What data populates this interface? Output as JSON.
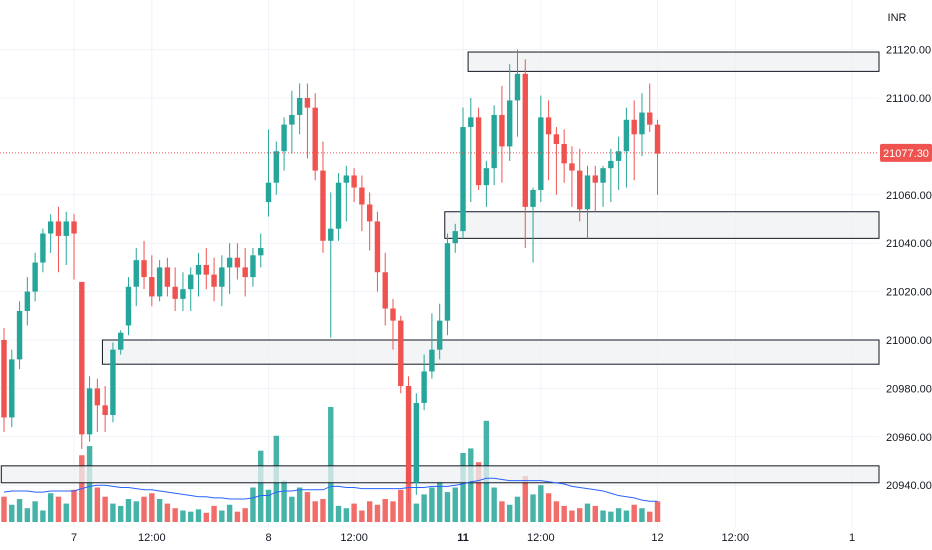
{
  "chart_data": {
    "type": "candlestick",
    "currency": "INR",
    "ylim": [
      20925,
      21130
    ],
    "y_ticks": [
      21120,
      21100,
      21060,
      21040,
      21020,
      21000,
      20980,
      20960,
      20940
    ],
    "y_tick_labels": [
      "21120.00",
      "21100.00",
      "21060.00",
      "21040.00",
      "21020.00",
      "21000.00",
      "20980.00",
      "20960.00",
      "20940.00"
    ],
    "last_price": 21077.3,
    "last_price_label": "21077.30",
    "x_ticks": [
      {
        "bar": 9,
        "label": "7",
        "bold": false
      },
      {
        "bar": 19,
        "label": "12:00",
        "bold": false
      },
      {
        "bar": 34,
        "label": "8",
        "bold": false
      },
      {
        "bar": 45,
        "label": "12:00",
        "bold": false
      },
      {
        "bar": 59,
        "label": "11",
        "bold": true
      },
      {
        "bar": 69,
        "label": "12:00",
        "bold": false
      },
      {
        "bar": 84,
        "label": "12",
        "bold": false
      },
      {
        "bar": 94,
        "label": "12:00",
        "bold": false
      },
      {
        "bar": 109,
        "label": "1",
        "bold": false
      }
    ],
    "ohlc": [
      [
        21000,
        21005,
        20962,
        20968
      ],
      [
        20968,
        20996,
        20964,
        20992
      ],
      [
        20992,
        21016,
        20988,
        21012
      ],
      [
        21012,
        21026,
        21006,
        21020
      ],
      [
        21020,
        21036,
        21016,
        21032
      ],
      [
        21032,
        21046,
        21028,
        21044
      ],
      [
        21044,
        21052,
        21036,
        21049
      ],
      [
        21049,
        21055,
        21028,
        21043
      ],
      [
        21043,
        21053,
        21031,
        21049
      ],
      [
        21049,
        21052,
        21025,
        21044
      ],
      [
        21024,
        21024,
        20955,
        20961
      ],
      [
        20961,
        20985,
        20958,
        20980
      ],
      [
        20980,
        20984,
        20962,
        20973
      ],
      [
        20973,
        20981,
        20962,
        20969
      ],
      [
        20969,
        20999,
        20966,
        20996
      ],
      [
        20996,
        21004,
        20994,
        21003
      ],
      [
        21006,
        21026,
        21002,
        21022
      ],
      [
        21022,
        21038,
        21014,
        21033
      ],
      [
        21033,
        21041,
        21021,
        21026
      ],
      [
        21026,
        21035,
        21014,
        21018
      ],
      [
        21018,
        21033,
        21016,
        21030
      ],
      [
        21030,
        21034,
        21018,
        21022
      ],
      [
        21022,
        21030,
        21012,
        21017
      ],
      [
        21017,
        21028,
        21012,
        21021
      ],
      [
        21021,
        21030,
        21012,
        21027
      ],
      [
        21027,
        21036,
        21018,
        21031
      ],
      [
        21031,
        21038,
        21021,
        21027
      ],
      [
        21027,
        21034,
        21016,
        21022
      ],
      [
        21022,
        21035,
        21014,
        21030
      ],
      [
        21030,
        21040,
        21019,
        21034
      ],
      [
        21034,
        21040,
        21025,
        21030
      ],
      [
        21030,
        21038,
        21018,
        21026
      ],
      [
        21026,
        21038,
        21022,
        21035
      ],
      [
        21035,
        21044,
        21030,
        21038
      ],
      [
        21057,
        21087,
        21051,
        21065
      ],
      [
        21065,
        21082,
        21060,
        21078
      ],
      [
        21078,
        21092,
        21070,
        21089
      ],
      [
        21089,
        21103,
        21077,
        21093
      ],
      [
        21093,
        21106,
        21085,
        21100
      ],
      [
        21100,
        21106,
        21075,
        21096
      ],
      [
        21096,
        21102,
        21066,
        21070
      ],
      [
        21070,
        21082,
        21036,
        21041
      ],
      [
        21041,
        21061,
        21001,
        21046
      ],
      [
        21046,
        21069,
        21041,
        21065
      ],
      [
        21065,
        21072,
        21049,
        21068
      ],
      [
        21068,
        21071,
        21057,
        21063
      ],
      [
        21063,
        21068,
        21045,
        21056
      ],
      [
        21056,
        21061,
        21037,
        21049
      ],
      [
        21049,
        21053,
        21020,
        21028
      ],
      [
        21028,
        21036,
        21006,
        21013
      ],
      [
        21013,
        21017,
        20996,
        21008
      ],
      [
        21008,
        21010,
        20978,
        20981
      ],
      [
        20981,
        20985,
        20933,
        20941
      ],
      [
        20941,
        20978,
        20936,
        20974
      ],
      [
        20974,
        20994,
        20971,
        20987
      ],
      [
        20987,
        21011,
        20984,
        20996
      ],
      [
        20996,
        21015,
        20992,
        21008
      ],
      [
        21008,
        21044,
        21002,
        21040
      ],
      [
        21040,
        21048,
        21036,
        21045
      ],
      [
        21045,
        21096,
        21042,
        21088
      ],
      [
        21088,
        21100,
        21057,
        21092
      ],
      [
        21092,
        21096,
        21062,
        21064
      ],
      [
        21064,
        21074,
        21055,
        21071
      ],
      [
        21071,
        21097,
        21064,
        21093
      ],
      [
        21093,
        21105,
        21065,
        21080
      ],
      [
        21080,
        21114,
        21074,
        21099
      ],
      [
        21099,
        21120,
        21084,
        21110
      ],
      [
        21110,
        21116,
        21038,
        21055
      ],
      [
        21055,
        21063,
        21032,
        21062
      ],
      [
        21062,
        21101,
        21057,
        21092
      ],
      [
        21092,
        21099,
        21066,
        21085
      ],
      [
        21085,
        21088,
        21060,
        21081
      ],
      [
        21081,
        21087,
        21065,
        21073
      ],
      [
        21073,
        21080,
        21055,
        21070
      ],
      [
        21070,
        21079,
        21049,
        21054
      ],
      [
        21054,
        21072,
        21042,
        21068
      ],
      [
        21068,
        21072,
        21053,
        21065
      ],
      [
        21065,
        21072,
        21055,
        21071
      ],
      [
        21071,
        21079,
        21057,
        21074
      ],
      [
        21074,
        21084,
        21062,
        21078
      ],
      [
        21078,
        21096,
        21063,
        21091
      ],
      [
        21091,
        21099,
        21066,
        21085
      ],
      [
        21085,
        21102,
        21076,
        21094
      ],
      [
        21094,
        21106,
        21086,
        21089
      ],
      [
        21089,
        21091,
        21060,
        21077
      ]
    ],
    "volume": [
      22,
      15,
      20,
      12,
      18,
      10,
      25,
      22,
      16,
      28,
      58,
      66,
      30,
      22,
      16,
      14,
      20,
      18,
      22,
      25,
      20,
      16,
      12,
      10,
      9,
      11,
      8,
      14,
      10,
      15,
      9,
      12,
      30,
      62,
      28,
      75,
      36,
      22,
      30,
      26,
      18,
      20,
      100,
      14,
      12,
      16,
      10,
      18,
      15,
      20,
      18,
      28,
      45,
      16,
      24,
      30,
      35,
      26,
      30,
      60,
      64,
      52,
      88,
      30,
      18,
      15,
      22,
      40,
      24,
      32,
      25,
      18,
      14,
      10,
      12,
      16,
      14,
      10,
      9,
      12,
      10,
      15,
      12,
      9,
      18
    ],
    "volume_ma": [
      26,
      27,
      27,
      27,
      26,
      26,
      27,
      27,
      27,
      27,
      29,
      31,
      32,
      32,
      31,
      30,
      30,
      29,
      28,
      28,
      27,
      26,
      25,
      24,
      23,
      22,
      22,
      21,
      21,
      20,
      20,
      20,
      21,
      23,
      23,
      26,
      27,
      27,
      28,
      28,
      28,
      28,
      31,
      31,
      30,
      30,
      29,
      29,
      29,
      29,
      29,
      29,
      30,
      30,
      30,
      31,
      31,
      31,
      32,
      33,
      35,
      36,
      38,
      38,
      37,
      36,
      36,
      36,
      36,
      36,
      35,
      34,
      33,
      31,
      30,
      29,
      28,
      27,
      25,
      23,
      22,
      21,
      19,
      18,
      18
    ],
    "zones": [
      {
        "from_bar": 60,
        "y_top": 21119,
        "y_bottom": 21111
      },
      {
        "from_bar": 57,
        "y_top": 21053,
        "y_bottom": 21042
      },
      {
        "from_bar": 13,
        "y_top": 21000,
        "y_bottom": 20990
      },
      {
        "from_bar": 0,
        "y_top": 20948,
        "y_bottom": 20941
      }
    ],
    "colors": {
      "up": "#26a69a",
      "down": "#ef5350",
      "up_vol": "#26a69a",
      "down_vol": "#ef5350",
      "zone_fill": "#eef0f3",
      "zone_stroke": "#131722",
      "grid": "#f0f3fa",
      "price_line": "#ef5350",
      "ma": "#2962ff",
      "text": "#131722"
    }
  }
}
